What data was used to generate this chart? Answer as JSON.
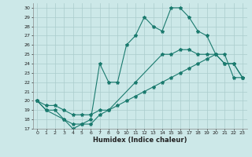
{
  "xlabel": "Humidex (Indice chaleur)",
  "bg_color": "#cce8e8",
  "line_color": "#1a7a6e",
  "grid_color": "#aacccc",
  "xlim": [
    -0.5,
    23.5
  ],
  "ylim": [
    17,
    30.5
  ],
  "yticks": [
    17,
    18,
    19,
    20,
    21,
    22,
    23,
    24,
    25,
    26,
    27,
    28,
    29,
    30
  ],
  "xticks": [
    0,
    1,
    2,
    3,
    4,
    5,
    6,
    7,
    8,
    9,
    10,
    11,
    12,
    13,
    14,
    15,
    16,
    17,
    18,
    19,
    20,
    21,
    22,
    23
  ],
  "line1_x": [
    0,
    1,
    2,
    3,
    4,
    5,
    6,
    7,
    8,
    9,
    10,
    11,
    12,
    13,
    14,
    15,
    16,
    17,
    18,
    19,
    20,
    21,
    22,
    23
  ],
  "line1_y": [
    20,
    19,
    19,
    18,
    17,
    17.5,
    18,
    24,
    22,
    22,
    26,
    27,
    29,
    28,
    27.5,
    30,
    30,
    29,
    27.5,
    27,
    25,
    24,
    24,
    22.5
  ],
  "line2_x": [
    0,
    1,
    3,
    4,
    5,
    6,
    7,
    8,
    11,
    14,
    15,
    16,
    17,
    18,
    19,
    20,
    21,
    22,
    23
  ],
  "line2_y": [
    20,
    19,
    18,
    17.5,
    17.5,
    17.5,
    18.5,
    19,
    22,
    25,
    25,
    25.5,
    25.5,
    25,
    25,
    25,
    24,
    24,
    22.5
  ],
  "line3_x": [
    0,
    1,
    2,
    3,
    4,
    5,
    6,
    7,
    8,
    9,
    10,
    11,
    12,
    13,
    14,
    15,
    16,
    17,
    18,
    19,
    20,
    21,
    22,
    23
  ],
  "line3_y": [
    20,
    19.5,
    19.5,
    19,
    18.5,
    18.5,
    18.5,
    19,
    19,
    19.5,
    20,
    20.5,
    21,
    21.5,
    22,
    22.5,
    23,
    23.5,
    24,
    24.5,
    25,
    25,
    22.5,
    22.5
  ]
}
